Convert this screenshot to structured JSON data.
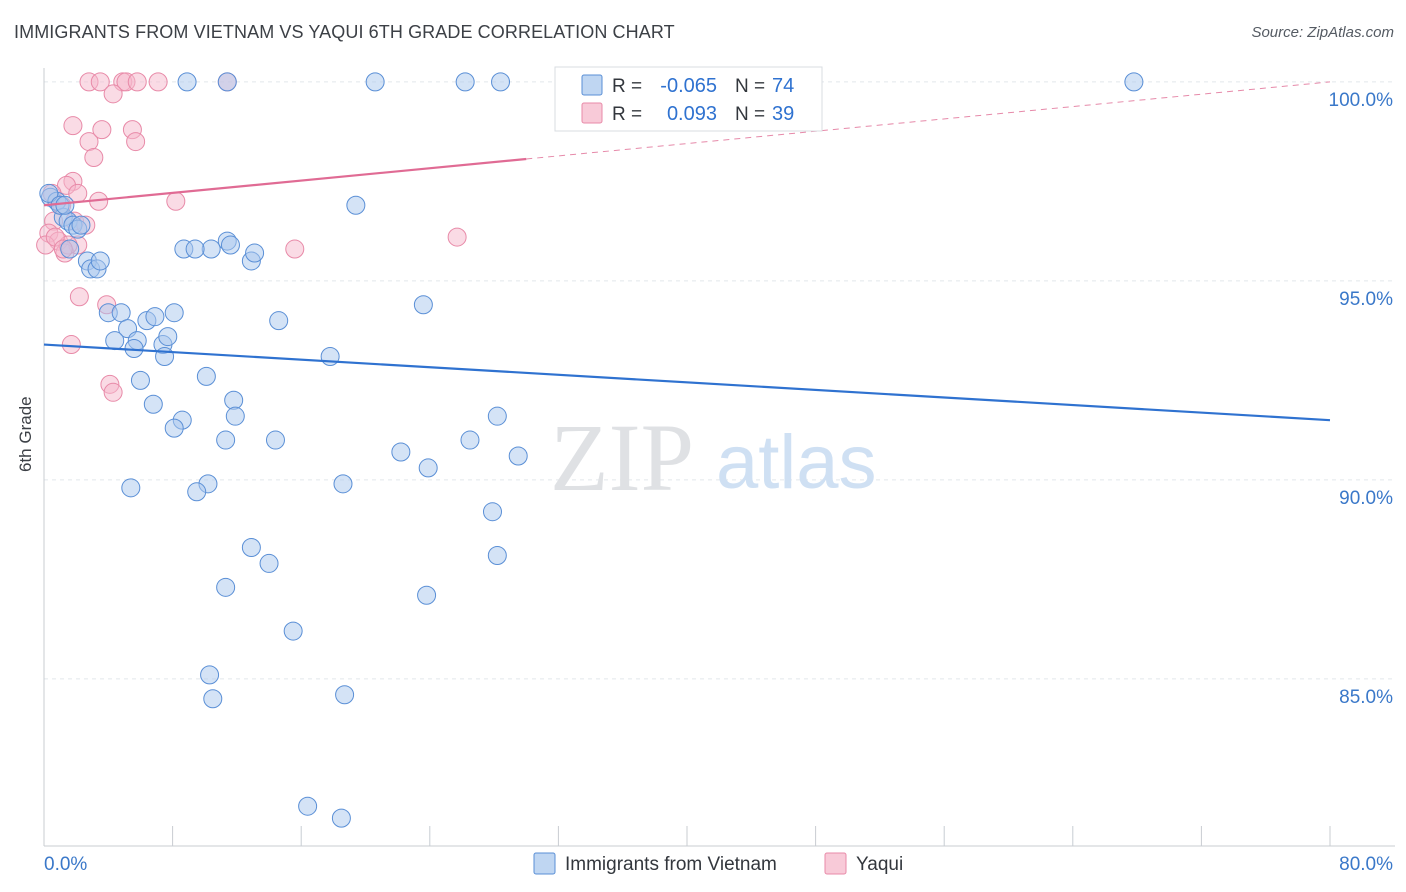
{
  "title": "IMMIGRANTS FROM VIETNAM VS YAQUI 6TH GRADE CORRELATION CHART",
  "source": "Source: ZipAtlas.com",
  "watermark": {
    "zip": "ZIP",
    "atlas": "atlas"
  },
  "colors": {
    "blue_fill": "#a9c8ee",
    "blue_stroke": "#5a8fd6",
    "blue_line": "#2f72d0",
    "pink_fill": "#f5b8cb",
    "pink_stroke": "#e88aa8",
    "pink_line": "#e06b94",
    "axis_label": "#3a78c9",
    "grid": "#e2e6eb"
  },
  "legend_stats": [
    {
      "r_label": "R =",
      "r_value": "-0.065",
      "n_label": "N =",
      "n_value": "74"
    },
    {
      "r_label": "R =",
      "r_value": "0.093",
      "n_label": "N =",
      "n_value": "39"
    }
  ],
  "chart_data": {
    "type": "scatter",
    "title": "IMMIGRANTS FROM VIETNAM VS YAQUI 6TH GRADE CORRELATION CHART",
    "xlabel": "",
    "ylabel": "6th Grade",
    "xlim": [
      0,
      80
    ],
    "ylim": [
      80.8,
      100.6
    ],
    "x_tick_labels": [
      {
        "value": 0,
        "label": "0.0%"
      },
      {
        "value": 80,
        "label": "80.0%"
      }
    ],
    "y_tick_labels": [
      {
        "value": 85,
        "label": "85.0%"
      },
      {
        "value": 90,
        "label": "90.0%"
      },
      {
        "value": 95,
        "label": "95.0%"
      },
      {
        "value": 100,
        "label": "100.0%"
      }
    ],
    "grid": true,
    "series": [
      {
        "name": "Immigrants from Vietnam",
        "color": "#a9c8ee",
        "trend": {
          "x": [
            0,
            80
          ],
          "y": [
            93.4,
            91.5
          ],
          "dashed_from": null
        },
        "points": [
          [
            0.4,
            97.1
          ],
          [
            0.8,
            97.0
          ],
          [
            1.2,
            96.6
          ],
          [
            1.5,
            96.5
          ],
          [
            1.8,
            96.4
          ],
          [
            2.1,
            96.3
          ],
          [
            2.3,
            96.4
          ],
          [
            1.6,
            95.8
          ],
          [
            2.7,
            95.5
          ],
          [
            2.9,
            95.3
          ],
          [
            3.3,
            95.3
          ],
          [
            3.5,
            95.5
          ],
          [
            4.0,
            94.2
          ],
          [
            4.8,
            94.2
          ],
          [
            5.2,
            93.8
          ],
          [
            5.8,
            93.5
          ],
          [
            6.4,
            94.0
          ],
          [
            6.9,
            94.1
          ],
          [
            7.4,
            93.4
          ],
          [
            8.1,
            94.2
          ],
          [
            7.7,
            93.6
          ],
          [
            7.5,
            93.1
          ],
          [
            4.4,
            93.5
          ],
          [
            5.6,
            93.3
          ],
          [
            6.0,
            92.5
          ],
          [
            10.1,
            92.6
          ],
          [
            6.8,
            91.9
          ],
          [
            8.6,
            91.5
          ],
          [
            8.1,
            91.3
          ],
          [
            11.8,
            92.0
          ],
          [
            11.9,
            91.6
          ],
          [
            11.3,
            91.0
          ],
          [
            14.6,
            94.0
          ],
          [
            12.9,
            95.5
          ],
          [
            13.1,
            95.7
          ],
          [
            11.4,
            96.0
          ],
          [
            11.6,
            95.9
          ],
          [
            10.4,
            95.8
          ],
          [
            8.7,
            95.8
          ],
          [
            9.4,
            95.8
          ],
          [
            14.4,
            91.0
          ],
          [
            17.8,
            93.1
          ],
          [
            19.4,
            96.9
          ],
          [
            23.6,
            94.4
          ],
          [
            22.2,
            90.7
          ],
          [
            23.9,
            90.3
          ],
          [
            26.5,
            91.0
          ],
          [
            28.2,
            91.6
          ],
          [
            29.5,
            90.6
          ],
          [
            18.6,
            89.9
          ],
          [
            10.2,
            89.9
          ],
          [
            9.5,
            89.7
          ],
          [
            5.4,
            89.8
          ],
          [
            27.9,
            89.2
          ],
          [
            28.2,
            88.1
          ],
          [
            12.9,
            88.3
          ],
          [
            11.3,
            87.3
          ],
          [
            14.0,
            87.9
          ],
          [
            23.8,
            87.1
          ],
          [
            15.5,
            86.2
          ],
          [
            10.3,
            85.1
          ],
          [
            10.5,
            84.5
          ],
          [
            18.7,
            84.6
          ],
          [
            16.4,
            81.8
          ],
          [
            18.5,
            81.5
          ],
          [
            8.9,
            100.0
          ],
          [
            11.4,
            100.0
          ],
          [
            20.6,
            100.0
          ],
          [
            26.2,
            100.0
          ],
          [
            28.4,
            100.0
          ],
          [
            67.8,
            100.0
          ],
          [
            0.3,
            97.2
          ],
          [
            1.0,
            96.9
          ],
          [
            1.3,
            96.9
          ]
        ]
      },
      {
        "name": "Yaqui",
        "color": "#f5b8cb",
        "trend": {
          "x": [
            0,
            80
          ],
          "y": [
            96.9,
            100.0
          ],
          "dashed_from": 30
        },
        "points": [
          [
            2.8,
            100.0
          ],
          [
            3.5,
            100.0
          ],
          [
            4.9,
            100.0
          ],
          [
            5.1,
            100.0
          ],
          [
            5.8,
            100.0
          ],
          [
            7.1,
            100.0
          ],
          [
            11.4,
            100.0
          ],
          [
            4.3,
            99.7
          ],
          [
            1.8,
            98.9
          ],
          [
            2.8,
            98.5
          ],
          [
            3.6,
            98.8
          ],
          [
            5.5,
            98.8
          ],
          [
            5.7,
            98.5
          ],
          [
            3.1,
            98.1
          ],
          [
            1.8,
            97.5
          ],
          [
            1.4,
            97.4
          ],
          [
            2.1,
            97.2
          ],
          [
            0.5,
            97.2
          ],
          [
            1.1,
            96.9
          ],
          [
            3.4,
            97.0
          ],
          [
            8.2,
            97.0
          ],
          [
            0.6,
            96.5
          ],
          [
            1.9,
            96.5
          ],
          [
            2.6,
            96.4
          ],
          [
            0.3,
            96.2
          ],
          [
            0.9,
            96.0
          ],
          [
            0.1,
            95.9
          ],
          [
            2.1,
            95.9
          ],
          [
            1.3,
            95.7
          ],
          [
            15.6,
            95.8
          ],
          [
            25.7,
            96.1
          ],
          [
            2.2,
            94.6
          ],
          [
            3.9,
            94.4
          ],
          [
            1.7,
            93.4
          ],
          [
            4.1,
            92.4
          ],
          [
            4.3,
            92.2
          ],
          [
            1.5,
            95.9
          ],
          [
            0.7,
            96.1
          ],
          [
            1.2,
            95.8
          ]
        ]
      }
    ]
  }
}
